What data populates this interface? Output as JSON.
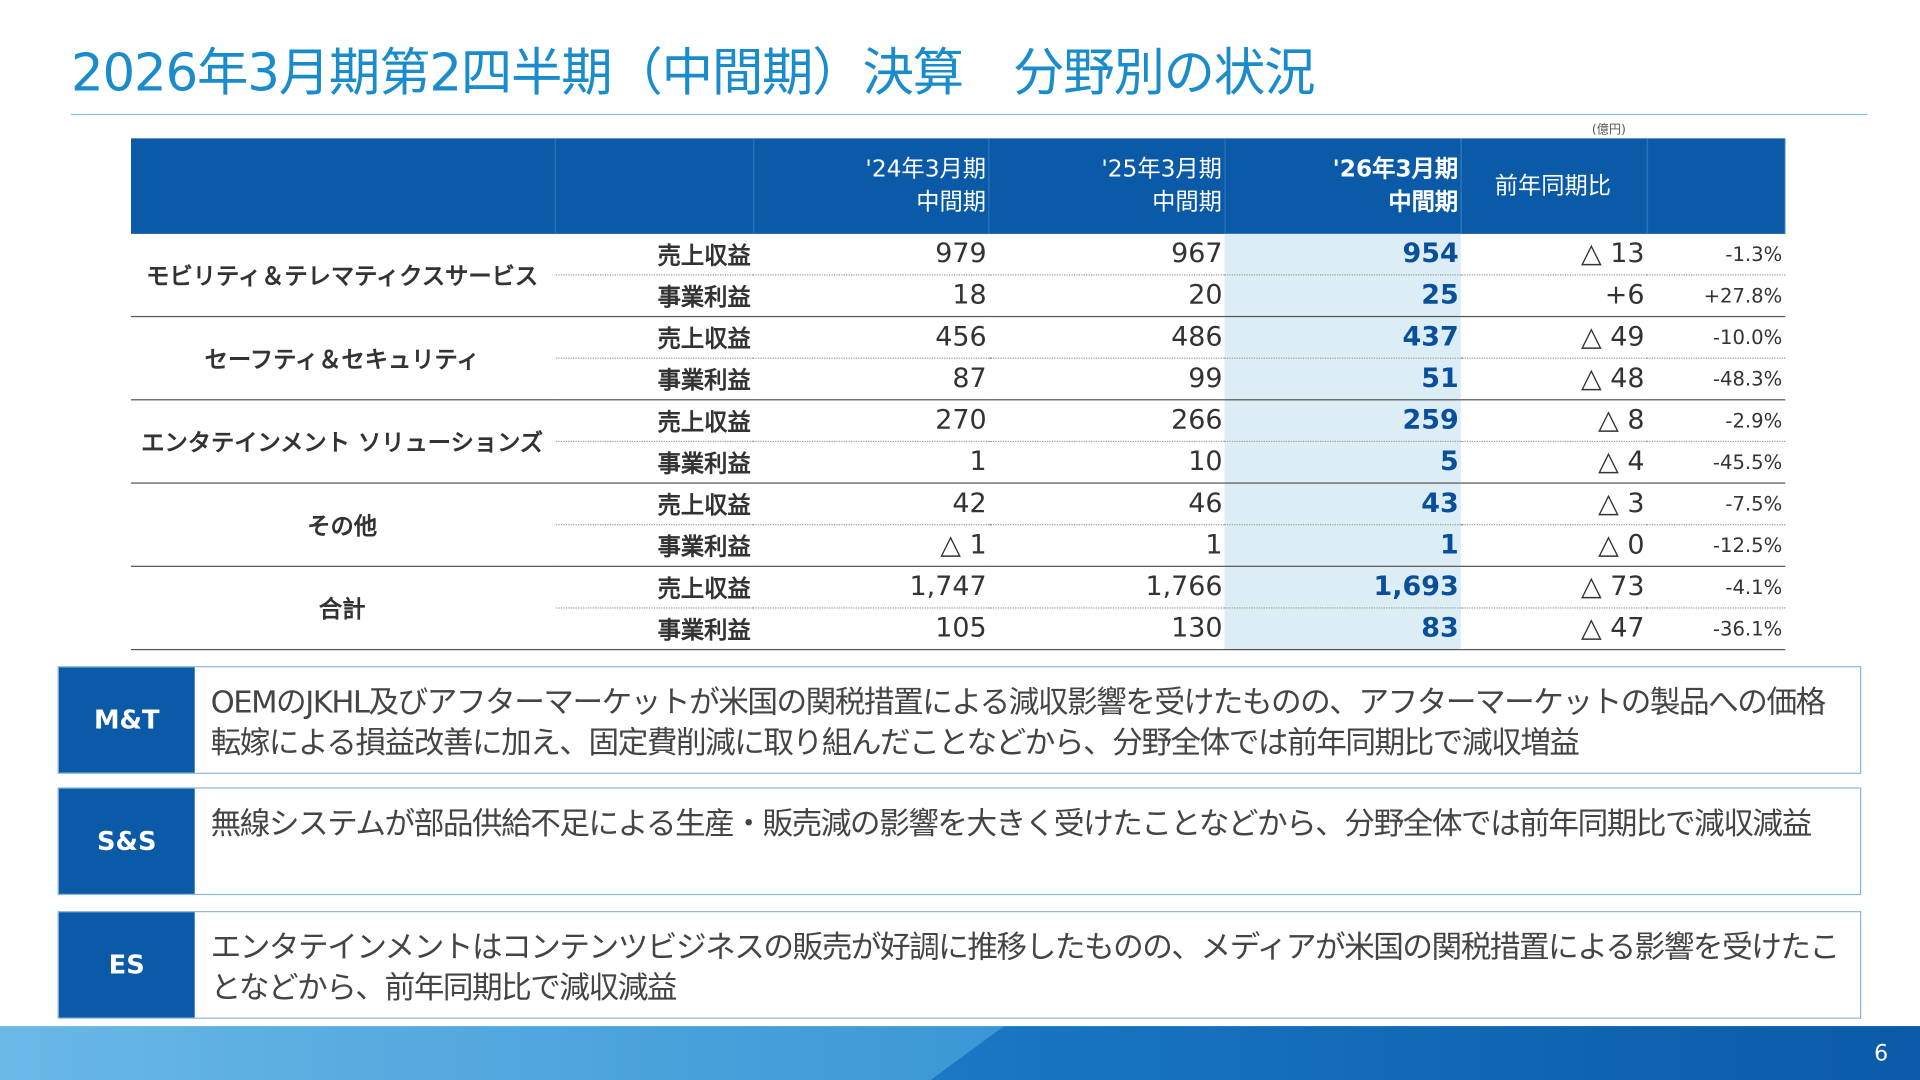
{
  "title": "2026年3月期第2四半期（中間期）決算　分野別の状況",
  "unit": "(億円)",
  "table": {
    "headers": [
      "",
      "",
      "'24年3月期\n中間期",
      "'25年3月期\n中間期",
      "'26年3月期\n中間期",
      "前年同期比",
      ""
    ],
    "segments": [
      {
        "name": "モビリティ＆テレマティクスサービス",
        "rows": [
          [
            "売上収益",
            "979",
            "967",
            "954",
            "△ 13",
            "-1.3%"
          ],
          [
            "事業利益",
            "18",
            "20",
            "25",
            "+6",
            "+27.8%"
          ]
        ]
      },
      {
        "name": "セーフティ＆セキュリティ",
        "rows": [
          [
            "売上収益",
            "456",
            "486",
            "437",
            "△ 49",
            "-10.0%"
          ],
          [
            "事業利益",
            "87",
            "99",
            "51",
            "△ 48",
            "-48.3%"
          ]
        ]
      },
      {
        "name": "エンタテインメント ソリューションズ",
        "rows": [
          [
            "売上収益",
            "270",
            "266",
            "259",
            "△ 8",
            "-2.9%"
          ],
          [
            "事業利益",
            "1",
            "10",
            "5",
            "△ 4",
            "-45.5%"
          ]
        ]
      },
      {
        "name": "その他",
        "rows": [
          [
            "売上収益",
            "42",
            "46",
            "43",
            "△ 3",
            "-7.5%"
          ],
          [
            "事業利益",
            "△ 1",
            "1",
            "1",
            "△ 0",
            "-12.5%"
          ]
        ]
      },
      {
        "name": "合計",
        "rows": [
          [
            "売上収益",
            "1,747",
            "1,766",
            "1,693",
            "△ 73",
            "-4.1%"
          ],
          [
            "事業利益",
            "105",
            "130",
            "83",
            "△ 47",
            "-36.1%"
          ]
        ]
      }
    ]
  },
  "notes": [
    {
      "label": "M&T",
      "text": "OEMのJKHL及びアフターマーケットが米国の関税措置による減収影響を受けたものの、アフターマーケットの製品への価格転嫁による損益改善に加え、固定費削減に取り組んだことなどから、分野全体では前年同期比で減収増益"
    },
    {
      "label": "S&S",
      "text": "無線システムが部品供給不足による生産・販売減の影響を大きく受けたことなどから、分野全体では前年同期比で減収減益"
    },
    {
      "label": "ES",
      "text": "エンタテインメントはコンテンツビジネスの販売が好調に推移したものの、メディアが米国の関税措置による影響を受けたことなどから、前年同期比で減収減益"
    }
  ],
  "page_number": "6",
  "colors": {
    "title": "#1a8ccc",
    "header": "#0a5aa8",
    "highlight": "#dcedf6",
    "value": "#0a4f9a"
  }
}
